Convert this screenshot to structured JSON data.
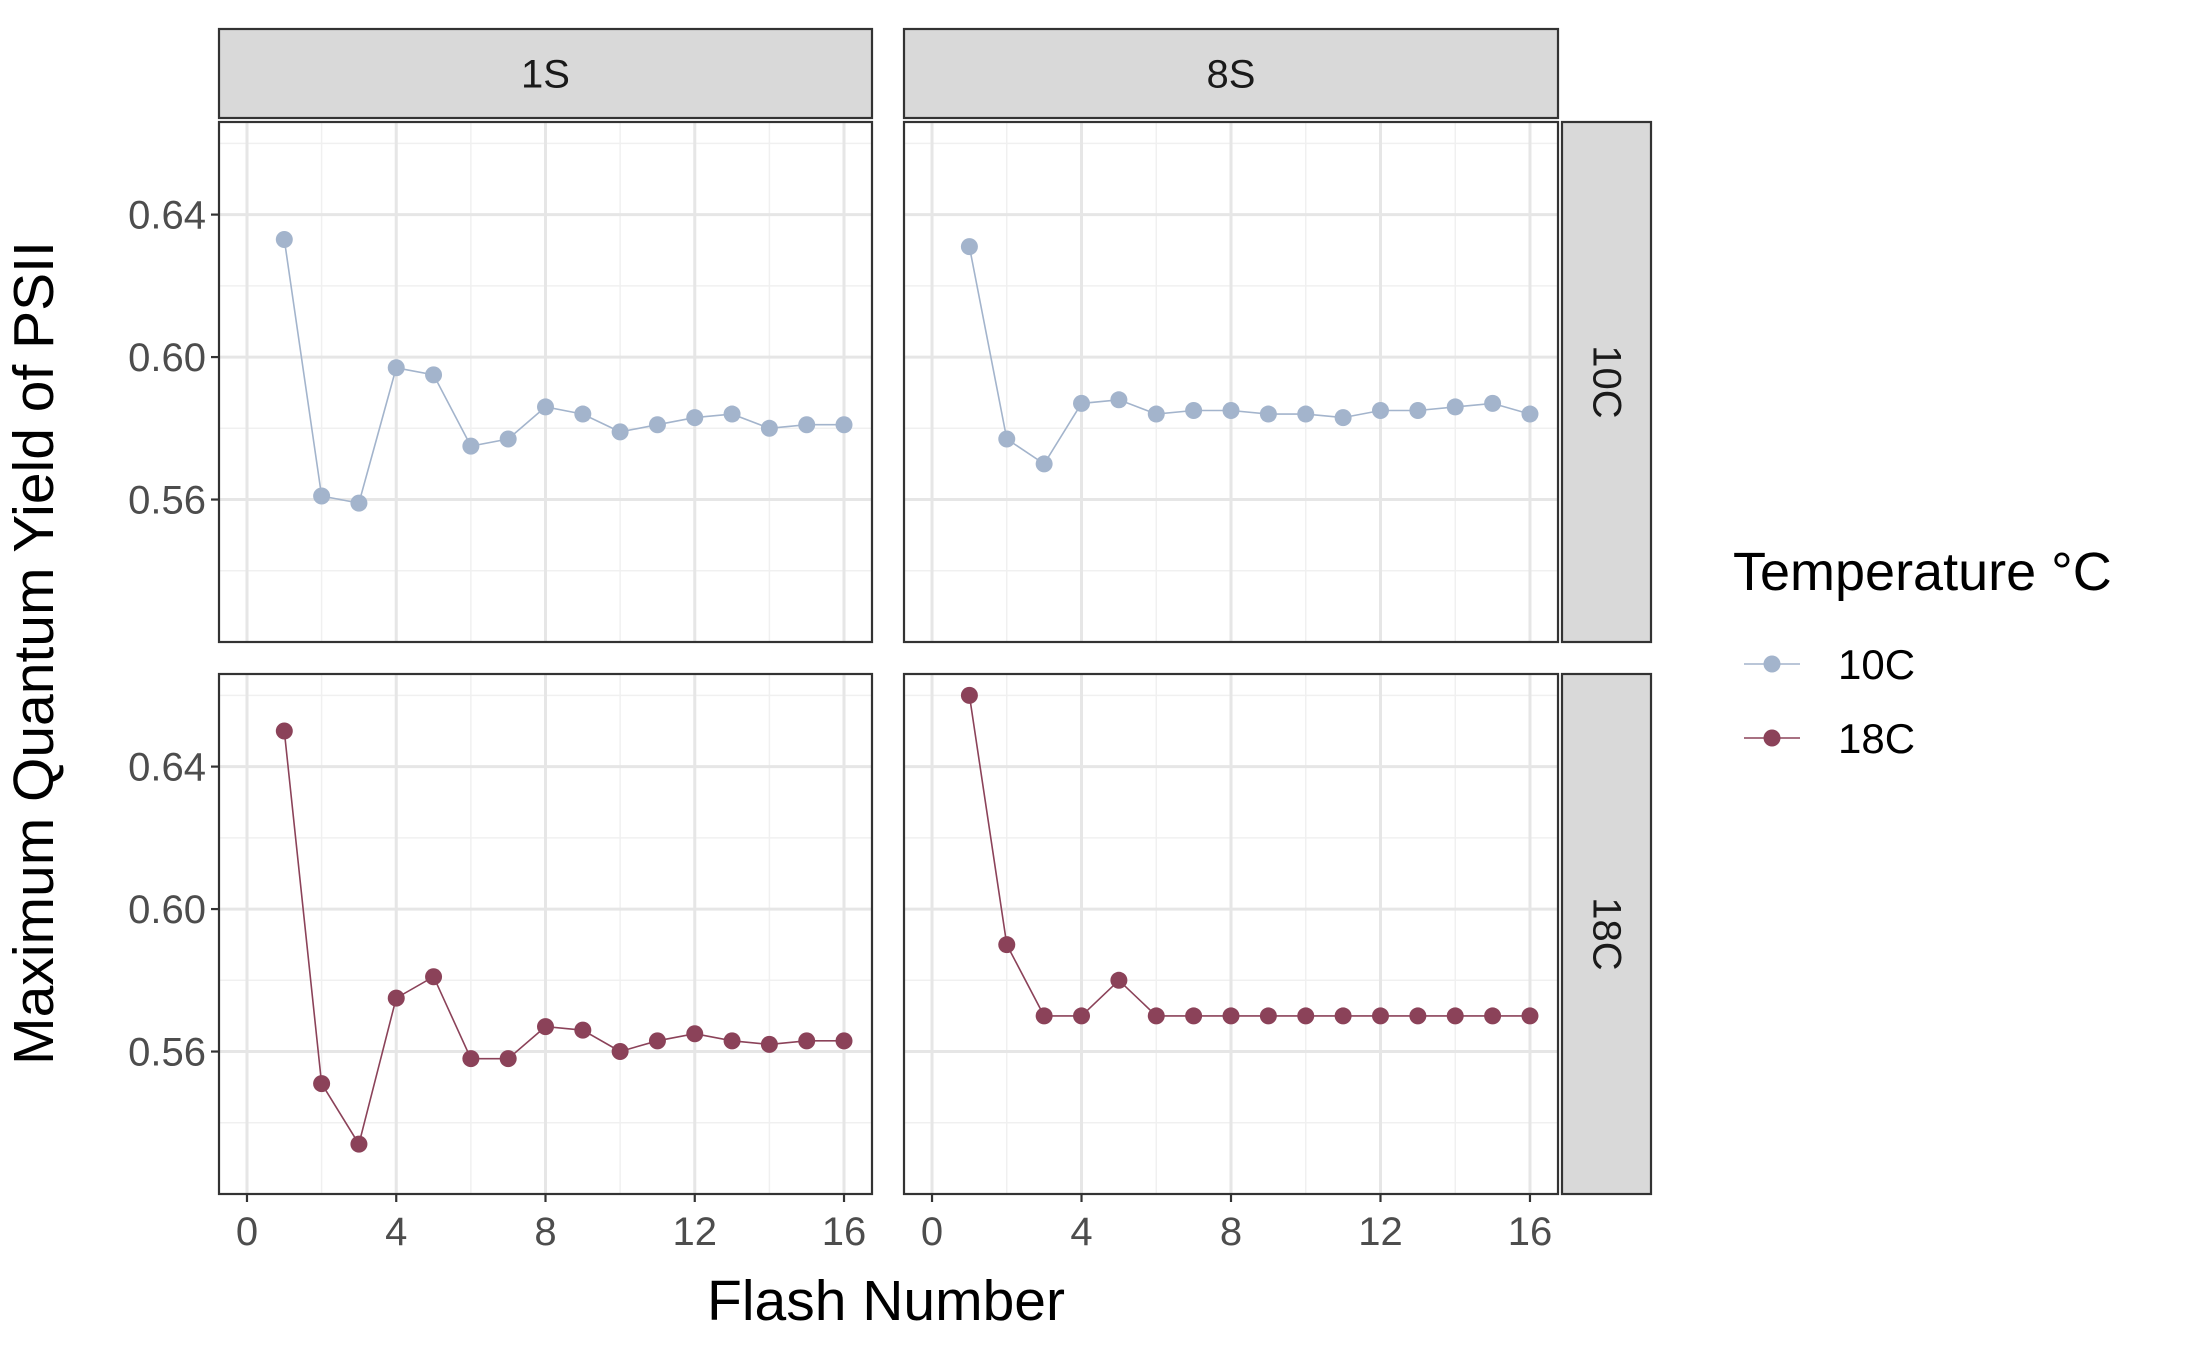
{
  "chart_data": {
    "type": "line",
    "facet_columns": [
      "1S",
      "8S"
    ],
    "facet_rows": [
      "10C",
      "18C"
    ],
    "xlabel": "Flash Number",
    "ylabel": "Maximum Quantum Yield of PSII",
    "xlim": [
      -0.75,
      16.75
    ],
    "ylim": [
      0.52,
      0.666
    ],
    "xticks": [
      0,
      4,
      8,
      12,
      16
    ],
    "xtick_labels": [
      "0",
      "4",
      "8",
      "12",
      "16"
    ],
    "yticks": [
      0.56,
      0.6,
      0.64
    ],
    "ytick_labels": [
      "0.56",
      "0.60",
      "0.64"
    ],
    "x": [
      1,
      2,
      3,
      4,
      5,
      6,
      7,
      8,
      9,
      10,
      11,
      12,
      13,
      14,
      15,
      16
    ],
    "grid": true,
    "legend": {
      "title": "Temperature °C",
      "position": "right",
      "entries": [
        {
          "label": "10C",
          "color": "#a3b4cc"
        },
        {
          "label": "18C",
          "color": "#8b4259"
        }
      ]
    },
    "panels": [
      {
        "col": "1S",
        "row": "10C",
        "color": "#a3b4cc",
        "values": [
          0.633,
          0.561,
          0.559,
          0.597,
          0.595,
          0.575,
          0.577,
          0.586,
          0.584,
          0.579,
          0.581,
          0.583,
          0.584,
          0.58,
          0.581,
          0.581
        ]
      },
      {
        "col": "8S",
        "row": "10C",
        "color": "#a3b4cc",
        "values": [
          0.631,
          0.577,
          0.57,
          0.587,
          0.588,
          0.584,
          0.585,
          0.585,
          0.584,
          0.584,
          0.583,
          0.585,
          0.585,
          0.586,
          0.587,
          0.584
        ]
      },
      {
        "col": "1S",
        "row": "18C",
        "color": "#8b4259",
        "values": [
          0.65,
          0.551,
          0.534,
          0.575,
          0.581,
          0.558,
          0.558,
          0.567,
          0.566,
          0.56,
          0.563,
          0.565,
          0.563,
          0.562,
          0.563,
          0.563
        ]
      },
      {
        "col": "8S",
        "row": "18C",
        "color": "#8b4259",
        "values": [
          0.66,
          0.59,
          0.57,
          0.57,
          0.58,
          0.57,
          0.57,
          0.57,
          0.57,
          0.57,
          0.57,
          0.57,
          0.57,
          0.57,
          0.57,
          0.57
        ]
      }
    ]
  }
}
